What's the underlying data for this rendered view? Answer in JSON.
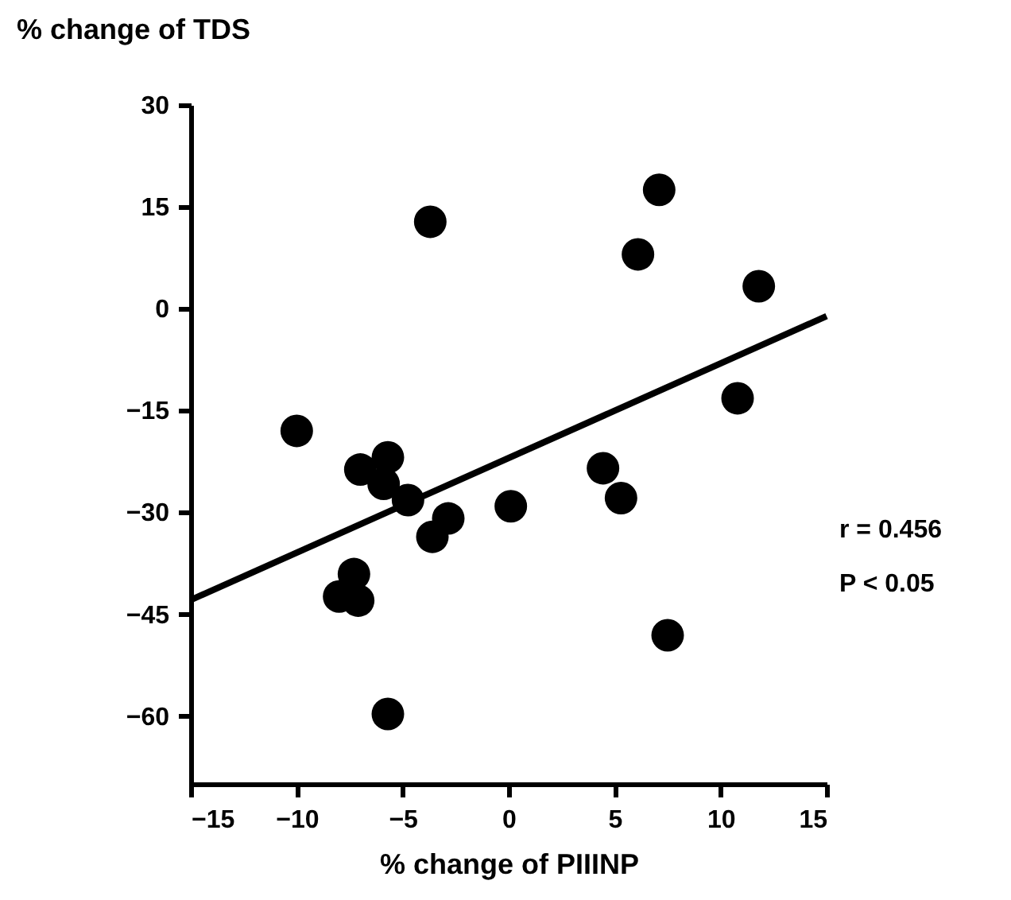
{
  "chart_data": {
    "type": "scatter",
    "ylabel": "% change of TDS",
    "xlabel": "% change of PIIINP",
    "xlim": [
      -15,
      15
    ],
    "xticks": [
      -15,
      -10,
      -5,
      0,
      5,
      10,
      15
    ],
    "ylim": [
      -70,
      30
    ],
    "yticks": [
      -60,
      -45,
      -30,
      -15,
      0,
      15,
      30
    ],
    "grid": false,
    "series": [
      {
        "marker": "circle",
        "color": "#000000",
        "x": [
          -10,
          -3.7,
          7.1,
          6.1,
          11.8,
          10.8,
          -7.0,
          -5.7,
          -5.9,
          -4.75,
          -2.85,
          -3.6,
          0.1,
          4.45,
          5.3,
          -7.3,
          -8.0,
          -7.1,
          7.5,
          -5.7
        ],
        "values": [
          -18,
          12.8,
          17.5,
          8.0,
          3.3,
          -13.2,
          -23.7,
          -21.9,
          -25.8,
          -28.2,
          -30.9,
          -33.6,
          -29.1,
          -23.5,
          -27.9,
          -39.1,
          -42.4,
          -43.0,
          -48.1,
          -59.7
        ]
      },
      {
        "type": "line",
        "color": "#000000",
        "x": [
          -15,
          15
        ],
        "values": [
          -42.9,
          -1.1
        ],
        "line_style": "solid"
      }
    ],
    "annotations": [
      "r = 0.456",
      "P < 0.05"
    ]
  }
}
